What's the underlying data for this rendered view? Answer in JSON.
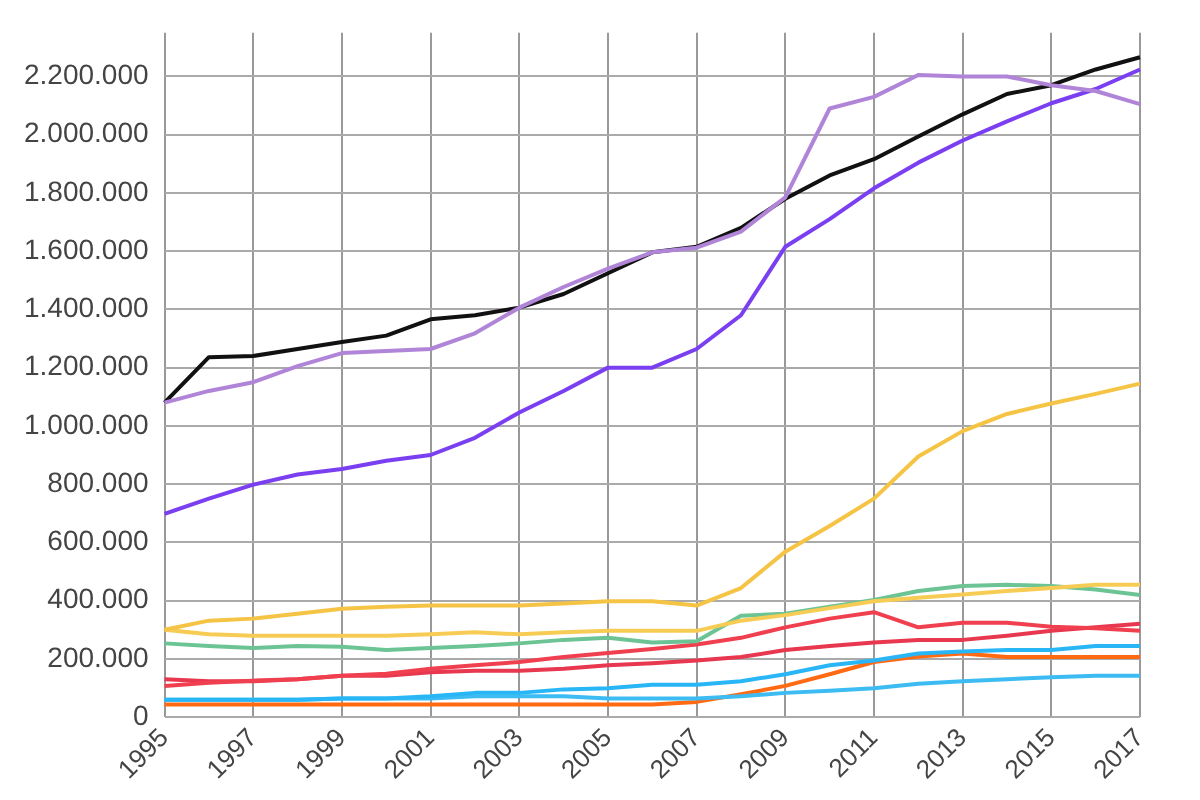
{
  "chart_data": {
    "type": "line",
    "categories": [
      "1995",
      null,
      "1997",
      null,
      "1999",
      null,
      "2001",
      null,
      "2003",
      null,
      "2005",
      null,
      "2007",
      null,
      "2009",
      null,
      "2011",
      null,
      "2013",
      null,
      "2015",
      null,
      "2017"
    ],
    "ylim": [
      0,
      2350000
    ],
    "yticks": [
      0,
      {
        "value": 200000,
        "label": "200.000"
      },
      {
        "value": 400000,
        "label": "400.000"
      },
      {
        "value": 600000,
        "label": "600.000"
      },
      {
        "value": 800000,
        "label": "800.000"
      },
      {
        "value": 1000000,
        "label": "1.000.000"
      },
      {
        "value": 1200000,
        "label": "1.200.000"
      },
      {
        "value": 1400000,
        "label": "1.400.000"
      },
      {
        "value": 1600000,
        "label": "1.600.000"
      },
      {
        "value": 1800000,
        "label": "1.800.000"
      },
      {
        "value": 2000000,
        "label": "2.000.000"
      },
      {
        "value": 2200000,
        "label": "2.200.000"
      }
    ],
    "grid": true,
    "legend": false,
    "marker": "none",
    "line_style": "solid",
    "series": [
      {
        "color": "#b085d8",
        "values": [
          1080000,
          1120000,
          1150000,
          1205000,
          1250000,
          1257000,
          1264000,
          1318000,
          1406000,
          1477000,
          1540000,
          1596000,
          1612000,
          1667000,
          1785000,
          2090000,
          2130000,
          2205000,
          2200000,
          2200000,
          2170000,
          2150000,
          2105000
        ]
      },
      {
        "color": "#7b3ff2",
        "values": [
          698000,
          750000,
          798000,
          833000,
          852000,
          880000,
          900000,
          959000,
          1046000,
          1120000,
          1200000,
          1200000,
          1264000,
          1380000,
          1615000,
          1710000,
          1816000,
          1904000,
          1980000,
          2046000,
          2108000,
          2157000,
          2224000
        ]
      },
      {
        "color": "#111111",
        "values": [
          1080000,
          1236000,
          1240000,
          1264000,
          1288000,
          1310000,
          1366000,
          1380000,
          1406000,
          1453000,
          1524000,
          1596000,
          1615000,
          1680000,
          1780000,
          1860000,
          1916000,
          1994000,
          2070000,
          2140000,
          2170000,
          2224000,
          2266000
        ]
      },
      {
        "color": "#f5c445",
        "values": [
          300000,
          331000,
          338000,
          355000,
          372000,
          379000,
          383000,
          383000,
          383000,
          390000,
          398000,
          398000,
          383000,
          443000,
          568000,
          656000,
          750000,
          895000,
          982000,
          1041000,
          1077000,
          1110000,
          1145000
        ]
      },
      {
        "color": "#f7cc55",
        "values": [
          300000,
          284000,
          279000,
          279000,
          279000,
          279000,
          284000,
          291000,
          284000,
          291000,
          296000,
          296000,
          296000,
          331000,
          350000,
          374000,
          398000,
          410000,
          421000,
          433000,
          443000,
          454000,
          454000
        ]
      },
      {
        "color": "#6cc495",
        "values": [
          253000,
          244000,
          237000,
          244000,
          241000,
          230000,
          237000,
          244000,
          253000,
          265000,
          272000,
          256000,
          260000,
          348000,
          355000,
          379000,
          402000,
          433000,
          450000,
          454000,
          450000,
          438000,
          419000
        ]
      },
      {
        "color": "#f0404f",
        "values": [
          107000,
          118000,
          125000,
          130000,
          142000,
          149000,
          166000,
          178000,
          189000,
          206000,
          220000,
          234000,
          249000,
          272000,
          308000,
          338000,
          360000,
          308000,
          324000,
          324000,
          310000,
          305000,
          296000
        ]
      },
      {
        "color": "#e8384f",
        "values": [
          130000,
          123000,
          123000,
          130000,
          142000,
          142000,
          154000,
          159000,
          159000,
          166000,
          178000,
          185000,
          194000,
          206000,
          230000,
          244000,
          256000,
          265000,
          265000,
          279000,
          296000,
          308000,
          320000
        ]
      },
      {
        "color": "#29b6f6",
        "values": [
          59000,
          59000,
          59000,
          59000,
          64000,
          64000,
          71000,
          83000,
          83000,
          95000,
          99000,
          111000,
          111000,
          123000,
          147000,
          178000,
          194000,
          218000,
          225000,
          230000,
          230000,
          244000,
          244000
        ]
      },
      {
        "color": "#3cbcf2",
        "values": [
          59000,
          59000,
          59000,
          59000,
          64000,
          64000,
          64000,
          71000,
          71000,
          71000,
          64000,
          64000,
          64000,
          71000,
          83000,
          90000,
          99000,
          114000,
          123000,
          130000,
          137000,
          142000,
          142000
        ]
      },
      {
        "color": "#ff6a13",
        "values": [
          43000,
          43000,
          43000,
          43000,
          43000,
          43000,
          43000,
          43000,
          43000,
          43000,
          43000,
          43000,
          52000,
          78000,
          107000,
          147000,
          189000,
          208000,
          218000,
          206000,
          206000,
          206000,
          206000
        ]
      }
    ]
  }
}
